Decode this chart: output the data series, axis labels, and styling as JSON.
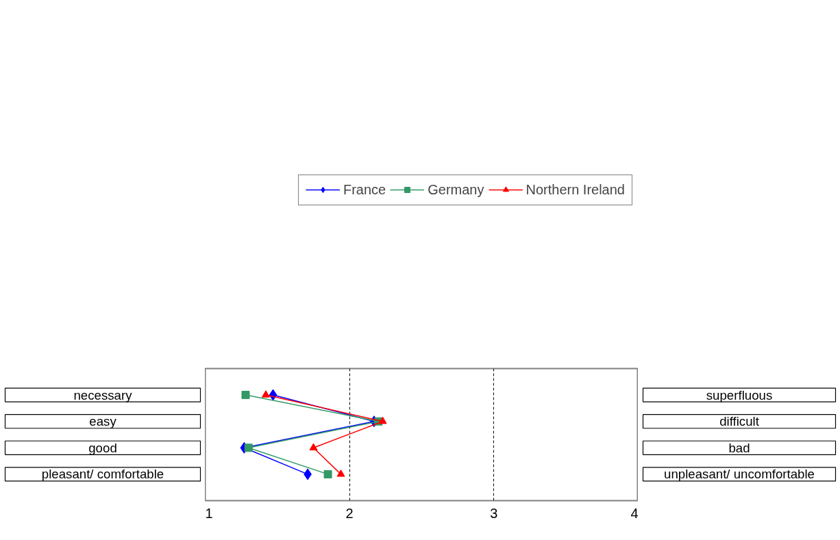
{
  "chart_data": {
    "type": "line",
    "orientation": "horizontal",
    "categories": [
      "necessary",
      "easy",
      "good",
      "pleasant/ comfortable"
    ],
    "y2_categories": [
      "superfluous",
      "difficult",
      "bad",
      "unpleasant/ uncomfortable"
    ],
    "series": [
      {
        "name": "France",
        "color": "#0000ff",
        "marker": "diamond",
        "values": [
          1.47,
          2.17,
          1.27,
          1.71
        ]
      },
      {
        "name": "Germany",
        "color": "#339966",
        "marker": "square",
        "values": [
          1.28,
          2.2,
          1.3,
          1.85
        ]
      },
      {
        "name": "Northern Ireland",
        "color": "#ff0000",
        "marker": "triangle",
        "values": [
          1.42,
          2.23,
          1.75,
          1.94
        ]
      }
    ],
    "xlim": [
      1,
      4
    ],
    "xticks": [
      1,
      2,
      3,
      4
    ],
    "grid": "x",
    "line_style": "solid",
    "legend": "top"
  }
}
